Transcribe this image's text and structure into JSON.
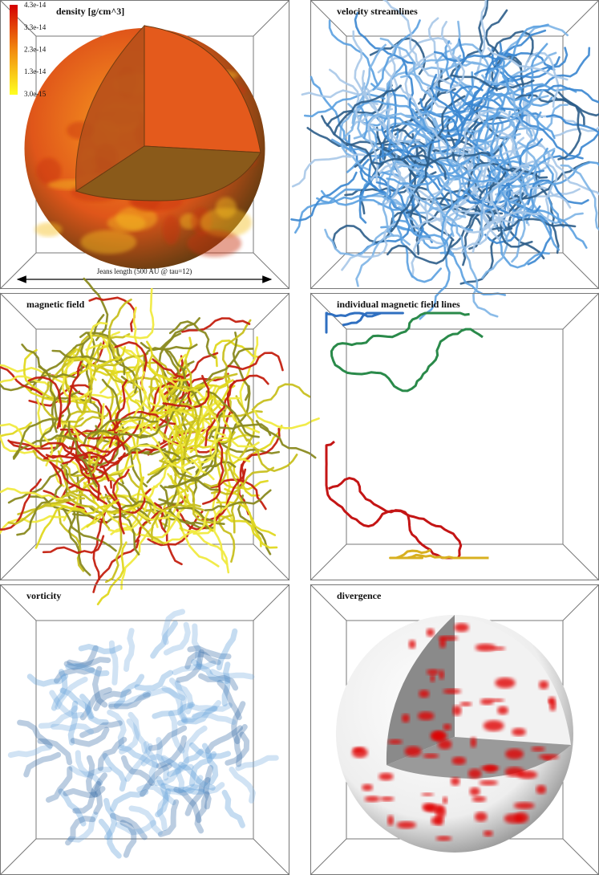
{
  "panels": [
    {
      "title": "density [g/cm^3]",
      "colorbar": [
        "4.3e-14",
        "3.3e-14",
        "2.3e-14",
        "1.3e-14",
        "3.0e-15"
      ],
      "annotation": "Jeans length (500 AU @ tau=12)"
    },
    {
      "title": "velocity streamlines"
    },
    {
      "title": "magnetic field"
    },
    {
      "title": "individual magnetic field lines"
    },
    {
      "title": "vorticity"
    },
    {
      "title": "divergence"
    }
  ]
}
